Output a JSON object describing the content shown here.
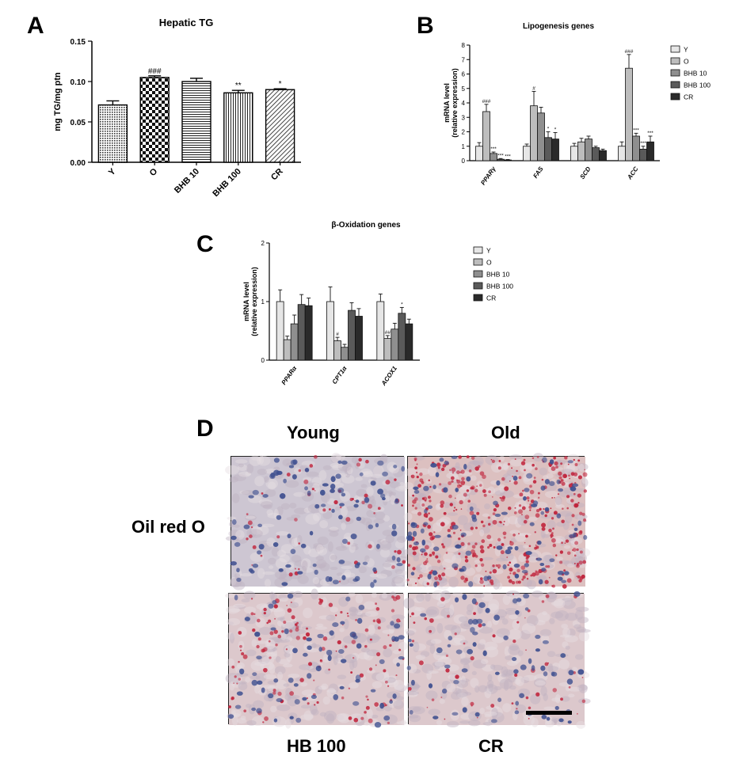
{
  "panels": {
    "a": "A",
    "b": "B",
    "c": "C",
    "d": "D"
  },
  "chart_data": [
    {
      "id": "A",
      "type": "bar",
      "title": "Hepatic TG",
      "ylabel": "mg TG/mg ptn",
      "xlabel": "",
      "categories": [
        "Y",
        "O",
        "BHB 10",
        "BHB 100",
        "CR"
      ],
      "values": [
        0.071,
        0.105,
        0.1,
        0.086,
        0.09
      ],
      "errors": [
        0.005,
        0.002,
        0.004,
        0.003,
        0.001
      ],
      "significance": [
        "",
        "###",
        "",
        "**",
        "*"
      ],
      "ylim": [
        0,
        0.15
      ],
      "yticks": [
        "0.00",
        "0.05",
        "0.10",
        "0.15"
      ],
      "patterns": [
        "dots-dense",
        "checker",
        "horizontal-lines",
        "vertical-lines",
        "diagonal-lines"
      ],
      "grid": false,
      "legend": "none"
    },
    {
      "id": "B",
      "type": "bar",
      "title": "Lipogenesis genes",
      "ylabel": "mRNA level",
      "ylabel2": "(relative expression)",
      "categories": [
        "PPARγ",
        "FAS",
        "SCD",
        "ACC"
      ],
      "ylim": [
        0,
        8
      ],
      "yticks": [
        "0",
        "1",
        "2",
        "3",
        "4",
        "5",
        "6",
        "7",
        "8"
      ],
      "series": [
        {
          "name": "Y",
          "color": "#e6e6e6",
          "values": [
            1.0,
            1.0,
            1.0,
            1.0
          ],
          "errors": [
            0.25,
            0.15,
            0.2,
            0.3
          ],
          "significance": [
            "",
            "",
            "",
            ""
          ]
        },
        {
          "name": "O",
          "color": "#bdbdbd",
          "values": [
            3.4,
            3.8,
            1.3,
            6.4
          ],
          "errors": [
            0.5,
            1.0,
            0.25,
            0.95
          ],
          "significance": [
            "###",
            "#",
            "",
            "###"
          ]
        },
        {
          "name": "BHB 10",
          "color": "#8f8f8f",
          "values": [
            0.5,
            3.3,
            1.5,
            1.7
          ],
          "errors": [
            0.1,
            0.4,
            0.2,
            0.2
          ],
          "significance": [
            "***",
            "",
            "",
            "***"
          ]
        },
        {
          "name": "BHB 100",
          "color": "#5a5a5a",
          "values": [
            0.1,
            1.6,
            0.9,
            0.8
          ],
          "errors": [
            0.05,
            0.4,
            0.1,
            0.2
          ],
          "significance": [
            "***",
            "*",
            "",
            "***"
          ]
        },
        {
          "name": "CR",
          "color": "#2a2a2a",
          "values": [
            0.05,
            1.5,
            0.7,
            1.3
          ],
          "errors": [
            0.03,
            0.45,
            0.1,
            0.4
          ],
          "significance": [
            "***",
            "*",
            "",
            "***"
          ]
        }
      ],
      "grid": false,
      "legend": "right"
    },
    {
      "id": "C",
      "type": "bar",
      "title": "β-Oxidation genes",
      "ylabel": "mRNA level",
      "ylabel2": "(relative expression)",
      "categories": [
        "PPARα",
        "CPT1α",
        "ACOX1"
      ],
      "ylim": [
        0,
        2
      ],
      "yticks": [
        "0",
        "1",
        "2"
      ],
      "series": [
        {
          "name": "Y",
          "color": "#e6e6e6",
          "values": [
            1.0,
            1.0,
            1.0
          ],
          "errors": [
            0.2,
            0.25,
            0.13
          ],
          "significance": [
            "",
            "",
            ""
          ]
        },
        {
          "name": "O",
          "color": "#bdbdbd",
          "values": [
            0.35,
            0.33,
            0.37
          ],
          "errors": [
            0.06,
            0.06,
            0.05
          ],
          "significance": [
            "",
            "#",
            "##"
          ]
        },
        {
          "name": "BHB 10",
          "color": "#8f8f8f",
          "values": [
            0.62,
            0.22,
            0.53
          ],
          "errors": [
            0.15,
            0.05,
            0.1
          ],
          "significance": [
            "",
            "",
            ""
          ]
        },
        {
          "name": "BHB 100",
          "color": "#5a5a5a",
          "values": [
            0.95,
            0.85,
            0.8
          ],
          "errors": [
            0.17,
            0.13,
            0.1
          ],
          "significance": [
            "",
            "",
            "*"
          ]
        },
        {
          "name": "CR",
          "color": "#2a2a2a",
          "values": [
            0.93,
            0.75,
            0.62
          ],
          "errors": [
            0.13,
            0.13,
            0.08
          ],
          "significance": [
            "",
            "",
            ""
          ]
        }
      ],
      "grid": false,
      "legend": "right"
    }
  ],
  "histology": {
    "stain_label": "Oil red O",
    "images": [
      {
        "label": "Young",
        "label_position": "top",
        "red_density": "low"
      },
      {
        "label": "Old",
        "label_position": "top",
        "red_density": "high"
      },
      {
        "label": "HB 100",
        "label_position": "bottom",
        "red_density": "medium"
      },
      {
        "label": "CR",
        "label_position": "bottom",
        "red_density": "low"
      }
    ],
    "colors": {
      "background": "#d8c3c7",
      "nuclei": "#3e4f8f",
      "lipid": "#c0223a"
    }
  }
}
